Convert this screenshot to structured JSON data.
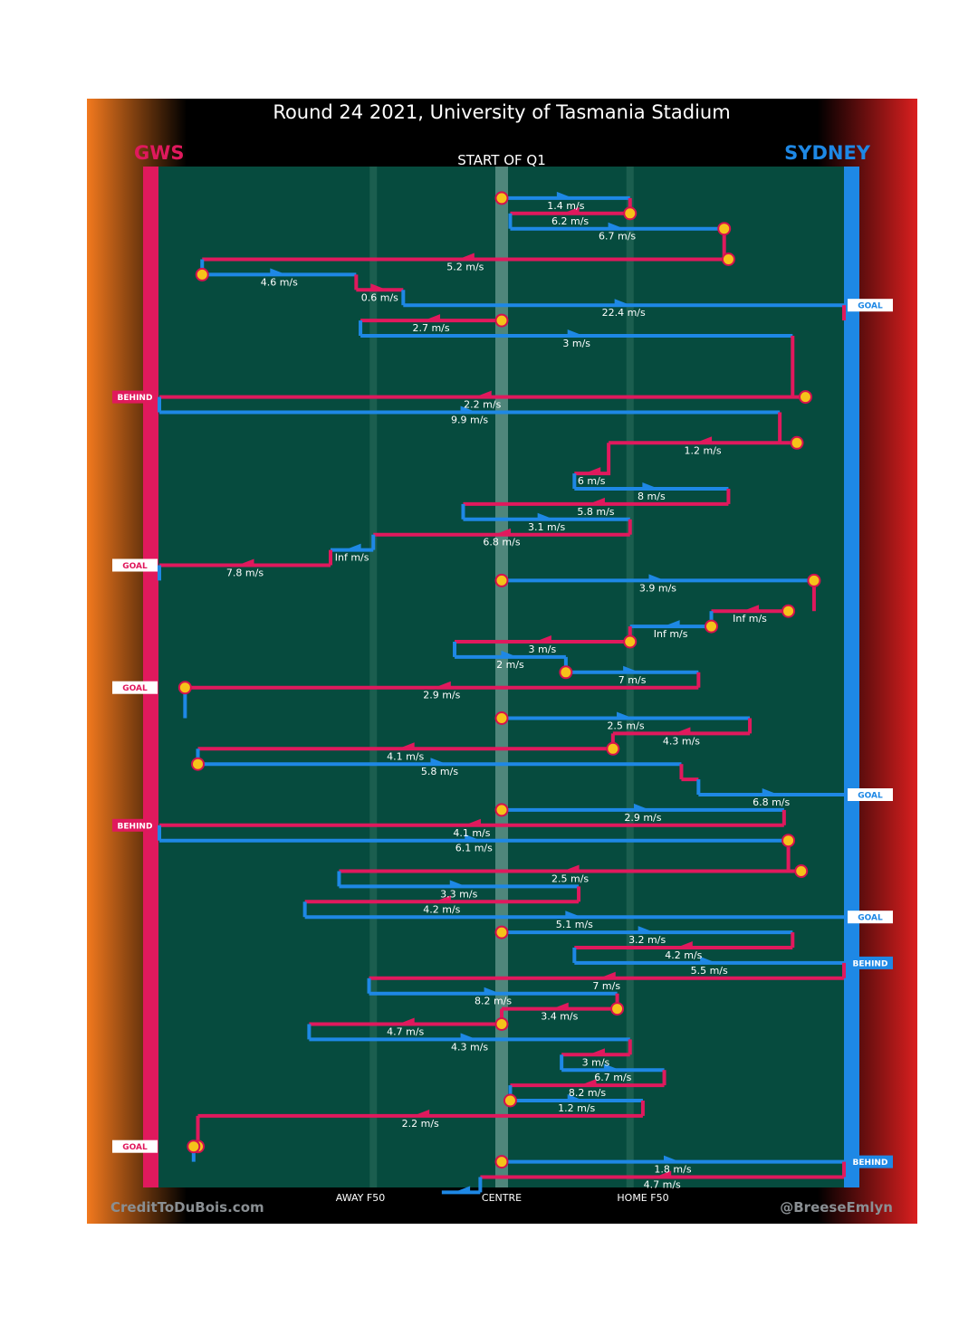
{
  "header": {
    "title": "Round 24 2021, University of Tasmania Stadium",
    "quarter": "START OF Q1",
    "team_left": "GWS",
    "team_right": "SYDNEY"
  },
  "footer": {
    "credit_left": "CreditToDuBois.com",
    "credit_right": "@BreeseEmlyn",
    "zones": [
      "AWAY F50",
      "CENTRE",
      "HOME F50"
    ]
  },
  "colors": {
    "gws": "#e0195d",
    "sydney": "#1e88e5",
    "field": "#064b3e",
    "stoppage": "#f6c21a",
    "stoppage_edge": "#d4124e"
  },
  "chart_data": {
    "type": "chain-sequence",
    "title": "Round 24 2021, University of Tasmania Stadium",
    "subtitle": "START OF Q1",
    "x_axis": {
      "range": [
        -80,
        80
      ],
      "labels": {
        "AWAY F50": -30,
        "CENTRE": 0,
        "HOME F50": 30
      }
    },
    "chains": [
      {
        "team": "sydney",
        "speed": "1.4 m/s",
        "start": 0,
        "end": 30,
        "row": 1,
        "start_stoppage": true
      },
      {
        "team": "gws",
        "speed": "6.2 m/s",
        "start": 30,
        "end": 2,
        "row": 2,
        "start_stoppage": true
      },
      {
        "team": "sydney",
        "speed": "6.7 m/s",
        "start": 2,
        "end": 52,
        "row": 3,
        "end_stoppage": true
      },
      {
        "team": "gws",
        "speed": "5.2 m/s",
        "start": 53,
        "end": -70,
        "row": 5,
        "start_stoppage": true
      },
      {
        "team": "sydney",
        "speed": "4.6 m/s",
        "start": -70,
        "end": -34,
        "row": 6,
        "start_stoppage": true
      },
      {
        "team": "gws",
        "speed": "0.6 m/s",
        "start": -34,
        "end": -23,
        "row": 7
      },
      {
        "team": "sydney",
        "speed": "22.4 m/s",
        "start": -23,
        "end": 80,
        "row": 8,
        "outcome": "GOAL"
      },
      {
        "team": "gws",
        "speed": "2.7 m/s",
        "start": 0,
        "end": -33,
        "row": 9,
        "start_stoppage": true
      },
      {
        "team": "sydney",
        "speed": "3 m/s",
        "start": -33,
        "end": 68,
        "row": 10
      },
      {
        "team": "gws",
        "speed": "2.2 m/s",
        "start": 71,
        "end": -80,
        "row": 14,
        "start_stoppage": true,
        "outcome": "BEHIND"
      },
      {
        "team": "sydney",
        "speed": "9.9 m/s",
        "start": -80,
        "end": 65,
        "row": 15
      },
      {
        "team": "gws",
        "speed": "1.2 m/s",
        "start": 69,
        "end": 25,
        "row": 17,
        "start_stoppage": true
      },
      {
        "team": "gws",
        "speed": "6 m/s",
        "start": 25,
        "end": 17,
        "row": 19
      },
      {
        "team": "sydney",
        "speed": "8 m/s",
        "start": 17,
        "end": 53,
        "row": 20
      },
      {
        "team": "gws",
        "speed": "5.8 m/s",
        "start": 53,
        "end": -9,
        "row": 21
      },
      {
        "team": "sydney",
        "speed": "3.1 m/s",
        "start": -9,
        "end": 30,
        "row": 22
      },
      {
        "team": "gws",
        "speed": "6.8 m/s",
        "start": 30,
        "end": -30,
        "row": 23
      },
      {
        "team": "sydney",
        "speed": "Inf m/s",
        "start": -30,
        "end": -40,
        "row": 24
      },
      {
        "team": "gws",
        "speed": "7.8 m/s",
        "start": -40,
        "end": -80,
        "row": 25,
        "outcome": "GOAL"
      },
      {
        "team": "sydney",
        "speed": "3.9 m/s",
        "start": 0,
        "end": 73,
        "row": 26,
        "start_stoppage": true,
        "end_stoppage": true
      },
      {
        "team": "gws",
        "speed": "Inf m/s",
        "start": 67,
        "end": 49,
        "row": 28,
        "start_stoppage": true
      },
      {
        "team": "sydney",
        "speed": "Inf m/s",
        "start": 49,
        "end": 30,
        "row": 29,
        "start_stoppage": true
      },
      {
        "team": "gws",
        "speed": "3 m/s",
        "start": 30,
        "end": -11,
        "row": 30,
        "start_stoppage": true
      },
      {
        "team": "sydney",
        "speed": "2 m/s",
        "start": -11,
        "end": 15,
        "row": 31
      },
      {
        "team": "sydney",
        "speed": "7 m/s",
        "start": 15,
        "end": 46,
        "row": 32,
        "start_stoppage": true
      },
      {
        "team": "gws",
        "speed": "2.9 m/s",
        "start": 46,
        "end": -74,
        "row": 33,
        "outcome": "GOAL",
        "end_stoppage": true
      },
      {
        "team": "sydney",
        "speed": "2.5 m/s",
        "start": 0,
        "end": 58,
        "row": 35,
        "start_stoppage": true
      },
      {
        "team": "gws",
        "speed": "4.3 m/s",
        "start": 58,
        "end": 26,
        "row": 36
      },
      {
        "team": "gws",
        "speed": "4.1 m/s",
        "start": 26,
        "end": -71,
        "row": 37,
        "start_stoppage": true
      },
      {
        "team": "sydney",
        "speed": "5.8 m/s",
        "start": -71,
        "end": 42,
        "row": 38,
        "start_stoppage": true
      },
      {
        "team": "gws",
        "speed": "",
        "start": 42,
        "end": 46,
        "row": 39
      },
      {
        "team": "sydney",
        "speed": "6.8 m/s",
        "start": 46,
        "end": 80,
        "row": 40,
        "outcome": "GOAL"
      },
      {
        "team": "sydney",
        "speed": "2.9 m/s",
        "start": 0,
        "end": 66,
        "row": 41,
        "start_stoppage": true
      },
      {
        "team": "gws",
        "speed": "4.1 m/s",
        "start": 66,
        "end": -80,
        "row": 42,
        "outcome": "BEHIND"
      },
      {
        "team": "sydney",
        "speed": "6.1 m/s",
        "start": -80,
        "end": 67,
        "row": 43,
        "end_stoppage": true
      },
      {
        "team": "gws",
        "speed": "2.5 m/s",
        "start": 70,
        "end": -38,
        "row": 45,
        "start_stoppage": true
      },
      {
        "team": "sydney",
        "speed": "3.3 m/s",
        "start": -38,
        "end": 18,
        "row": 46
      },
      {
        "team": "gws",
        "speed": "4.2 m/s",
        "start": 18,
        "end": -46,
        "row": 47
      },
      {
        "team": "sydney",
        "speed": "5.1 m/s",
        "start": -46,
        "end": 80,
        "row": 48,
        "outcome": "GOAL"
      },
      {
        "team": "sydney",
        "speed": "3.2 m/s",
        "start": 0,
        "end": 68,
        "row": 49,
        "start_stoppage": true
      },
      {
        "team": "gws",
        "speed": "4.2 m/s",
        "start": 68,
        "end": 17,
        "row": 50
      },
      {
        "team": "sydney",
        "speed": "5.5 m/s",
        "start": 17,
        "end": 80,
        "row": 51,
        "outcome": "BEHIND"
      },
      {
        "team": "gws",
        "speed": "7 m/s",
        "start": 80,
        "end": -31,
        "row": 52
      },
      {
        "team": "sydney",
        "speed": "8.2 m/s",
        "start": -31,
        "end": 27,
        "row": 53
      },
      {
        "team": "gws",
        "speed": "3.4 m/s",
        "start": 27,
        "end": 0,
        "row": 54,
        "start_stoppage": true
      },
      {
        "team": "gws",
        "speed": "4.7 m/s",
        "start": 0,
        "end": -45,
        "row": 55,
        "start_stoppage": true
      },
      {
        "team": "sydney",
        "speed": "4.3 m/s",
        "start": -45,
        "end": 30,
        "row": 56
      },
      {
        "team": "gws",
        "speed": "3 m/s",
        "start": 30,
        "end": 14,
        "row": 57
      },
      {
        "team": "sydney",
        "speed": "6.7 m/s",
        "start": 14,
        "end": 38,
        "row": 58
      },
      {
        "team": "gws",
        "speed": "8.2 m/s",
        "start": 38,
        "end": 2,
        "row": 59
      },
      {
        "team": "sydney",
        "speed": "1.2 m/s",
        "start": 2,
        "end": 33,
        "row": 60,
        "start_stoppage": true
      },
      {
        "team": "gws",
        "speed": "2.2 m/s",
        "start": 33,
        "end": -71,
        "row": 61
      },
      {
        "team": "gws",
        "speed": "",
        "start": -71,
        "end": -72,
        "row": 63,
        "outcome": "GOAL",
        "start_stoppage": true,
        "end_stoppage": true
      },
      {
        "team": "sydney",
        "speed": "1.8 m/s",
        "start": 0,
        "end": 80,
        "row": 64,
        "start_stoppage": true,
        "outcome": "BEHIND"
      },
      {
        "team": "gws",
        "speed": "4.7 m/s",
        "start": 80,
        "end": -5,
        "row": 65
      },
      {
        "team": "sydney",
        "speed": "",
        "start": -5,
        "end": -14,
        "row": 66
      }
    ]
  }
}
